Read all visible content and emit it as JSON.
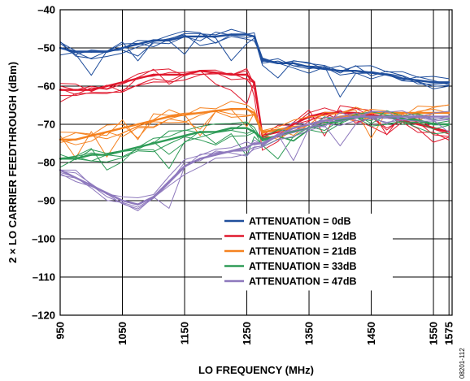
{
  "figure_id": "08201-112",
  "chart_data": {
    "type": "line",
    "title": "",
    "xlabel": "LO FREQUENCY (MHz)",
    "ylabel": "2 × LO CARRIER FEEDTHROUGH (dBm)",
    "xlim": [
      950,
      1580
    ],
    "ylim": [
      -120,
      -40
    ],
    "xticks": [
      950,
      1050,
      1150,
      1250,
      1350,
      1450,
      1550,
      1575
    ],
    "yticks": [
      -40,
      -50,
      -60,
      -70,
      -80,
      -90,
      -100,
      -110,
      -120
    ],
    "xtick_labels": [
      "950",
      "1050",
      "1150",
      "1250",
      "1350",
      "1450",
      "1550",
      "1575"
    ],
    "ytick_labels": [
      "–40",
      "–50",
      "–60",
      "–70",
      "–80",
      "–90",
      "–100",
      "–110",
      "–120"
    ],
    "grid": true,
    "legend_position": "bottom-center",
    "x": [
      950,
      975,
      1000,
      1025,
      1050,
      1075,
      1100,
      1125,
      1150,
      1175,
      1200,
      1225,
      1250,
      1262,
      1275,
      1300,
      1325,
      1350,
      1375,
      1400,
      1425,
      1450,
      1475,
      1500,
      1525,
      1550,
      1575
    ],
    "series": [
      {
        "name": "ATTENUATION = 0dB",
        "color": "#1f4e9c",
        "values": [
          -50,
          -51,
          -51,
          -51,
          -50,
          -49,
          -48,
          -48,
          -47,
          -47,
          -47,
          -46.5,
          -46.5,
          -47,
          -53,
          -54,
          -54,
          -55,
          -55.5,
          -56,
          -56,
          -56.5,
          -57,
          -58,
          -58.5,
          -59,
          -59
        ]
      },
      {
        "name": "ATTENUATION = 12dB",
        "color": "#e0182d",
        "values": [
          -61,
          -61,
          -61,
          -60,
          -59,
          -58,
          -57,
          -57,
          -57,
          -56,
          -56.5,
          -57,
          -57,
          -59,
          -73,
          -72,
          -70,
          -68,
          -67,
          -67,
          -67,
          -67.5,
          -68,
          -69,
          -70,
          -71,
          -72
        ]
      },
      {
        "name": "ATTENUATION = 21dB",
        "color": "#f58220",
        "values": [
          -74,
          -74,
          -73,
          -72,
          -71,
          -70,
          -69,
          -68,
          -67.5,
          -67,
          -66.5,
          -66,
          -66,
          -67,
          -72,
          -71.5,
          -71,
          -70,
          -69,
          -68,
          -67.5,
          -67,
          -67,
          -67,
          -67,
          -67,
          -67
        ]
      },
      {
        "name": "ATTENUATION = 33dB",
        "color": "#2e9b57",
        "values": [
          -79,
          -79,
          -78,
          -78,
          -77,
          -76,
          -75,
          -74,
          -73,
          -72,
          -72,
          -71,
          -71,
          -72,
          -74,
          -73,
          -72,
          -71,
          -70,
          -69,
          -68,
          -68,
          -68,
          -68.5,
          -69,
          -70,
          -70
        ]
      },
      {
        "name": "ATTENUATION = 47dB",
        "color": "#8e79bd",
        "values": [
          -82,
          -84,
          -86,
          -88,
          -90,
          -91,
          -89,
          -85,
          -81,
          -79,
          -78,
          -77,
          -76,
          -75,
          -75,
          -73,
          -71,
          -70,
          -69,
          -68.5,
          -68,
          -68,
          -68,
          -68,
          -68,
          -68,
          -68
        ]
      }
    ]
  }
}
